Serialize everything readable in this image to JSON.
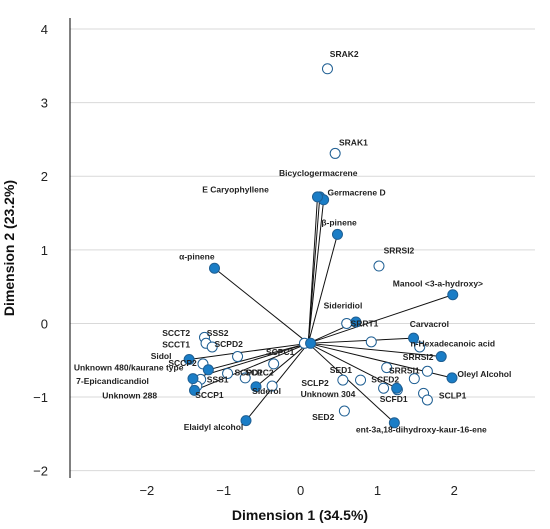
{
  "chart_data": {
    "type": "scatter",
    "title": "",
    "xlabel": "Dimension 1 (34.5%)",
    "ylabel": "Dimension 2 (23.2%)",
    "xlim": [
      -3.0,
      3.05
    ],
    "ylim": [
      -2.1,
      4.15
    ],
    "xticks": [
      "−2",
      "−1",
      "0",
      "1",
      "2"
    ],
    "yticks": [
      "−2",
      "−1",
      "0",
      "1",
      "2",
      "3",
      "4"
    ],
    "grid": "horizontal",
    "colors": {
      "variable": "#1a7dc6",
      "sample": "#ffffff",
      "stroke": "#1f5f93",
      "grid": "#d9d9d9",
      "vector": "#111111"
    },
    "variables": [
      {
        "label": "Bicyclogermacrene",
        "x": 0.25,
        "y": 1.72
      },
      {
        "label": "Germacrene D",
        "x": 0.3,
        "y": 1.68
      },
      {
        "label": "E Caryophyllene",
        "x": 0.22,
        "y": 1.72
      },
      {
        "label": "β-pinene",
        "x": 0.48,
        "y": 1.21
      },
      {
        "label": "α-pinene",
        "x": -1.12,
        "y": 0.75
      },
      {
        "label": "Manool <3-a-hydroxy>",
        "x": 1.98,
        "y": 0.39
      },
      {
        "label": "Carvacrol",
        "x": 0.72,
        "y": 0.02
      },
      {
        "label": "n-Hexadecanoic acid",
        "x": 1.47,
        "y": -0.2
      },
      {
        "label": "Oleyl Alcohol",
        "x": 1.97,
        "y": -0.74
      },
      {
        "label": "Sideridiol",
        "x": 0.13,
        "y": -0.27
      },
      {
        "label": "Unknown 480/kaurane type",
        "x": -1.45,
        "y": -0.49
      },
      {
        "label": "7-Epicandicandiol",
        "x": -1.4,
        "y": -0.75
      },
      {
        "label": "Unknown 288",
        "x": -1.38,
        "y": -0.91
      },
      {
        "label": "Sidol",
        "x": -1.2,
        "y": -0.63
      },
      {
        "label": "Siderol",
        "x": -0.58,
        "y": -0.86
      },
      {
        "label": "Elaidyl alcohol",
        "x": -0.71,
        "y": -1.32
      },
      {
        "label": "ent-3a,18-dihydroxy-kaur-16-ene",
        "x": 1.22,
        "y": -1.35
      },
      {
        "label": "Unknown 304",
        "x": 1.25,
        "y": -0.88
      },
      {
        "label": "",
        "x": 1.83,
        "y": -0.45
      }
    ],
    "samples": [
      {
        "label": "SRAK2",
        "x": 0.35,
        "y": 3.46
      },
      {
        "label": "SRAK1",
        "x": 0.45,
        "y": 2.31
      },
      {
        "label": "SRRSI2",
        "x": 1.02,
        "y": 0.78
      },
      {
        "label": "SRRT1",
        "x": 0.6,
        "y": 0.0
      },
      {
        "label": "SRRSI2",
        "x": 1.55,
        "y": -0.32
      },
      {
        "label": "SRRSI1",
        "x": 1.12,
        "y": -0.6
      },
      {
        "label": "SCCT2",
        "x": -1.25,
        "y": -0.19
      },
      {
        "label": "SCCT1",
        "x": -1.23,
        "y": -0.27
      },
      {
        "label": "SSS2",
        "x": -1.15,
        "y": -0.32
      },
      {
        "label": "SCPD2",
        "x": -0.82,
        "y": -0.45
      },
      {
        "label": "SCCP2",
        "x": -1.27,
        "y": -0.55
      },
      {
        "label": "SCPC1",
        "x": -0.35,
        "y": -0.55
      },
      {
        "label": "SCPD1",
        "x": -0.95,
        "y": -0.68
      },
      {
        "label": "SCPC2",
        "x": -0.72,
        "y": -0.74
      },
      {
        "label": "SSS1",
        "x": -1.3,
        "y": -0.76
      },
      {
        "label": "SCCP1",
        "x": -1.35,
        "y": -0.85
      },
      {
        "label": "SCPC2",
        "x": -0.37,
        "y": -0.85
      },
      {
        "label": "SED1",
        "x": 0.55,
        "y": -0.77
      },
      {
        "label": "SCLP2",
        "x": 0.78,
        "y": -0.77
      },
      {
        "label": "SCFD2",
        "x": 1.08,
        "y": -0.88
      },
      {
        "label": "SCFD1",
        "x": 1.26,
        "y": -0.9
      },
      {
        "label": "SCLP1",
        "x": 1.6,
        "y": -0.95
      },
      {
        "label": "SCLP1",
        "x": 1.65,
        "y": -1.04
      },
      {
        "label": "SCLP1",
        "x": 1.48,
        "y": -0.75
      },
      {
        "label": "SED2",
        "x": 0.57,
        "y": -1.19
      },
      {
        "label": "",
        "x": 0.05,
        "y": -0.27
      },
      {
        "label": "",
        "x": 0.92,
        "y": -0.25
      },
      {
        "label": "",
        "x": 1.65,
        "y": -0.65
      }
    ],
    "labels": [
      {
        "text": "SRAK2",
        "x": 0.38,
        "y": 3.62
      },
      {
        "text": "SRAK1",
        "x": 0.5,
        "y": 2.42
      },
      {
        "text": "Bicyclogermacrene",
        "x": -0.28,
        "y": 2.0
      },
      {
        "text": "E Caryophyllene",
        "x": -1.28,
        "y": 1.78
      },
      {
        "text": "Germacrene D",
        "x": 0.35,
        "y": 1.74
      },
      {
        "text": "β-pinene",
        "x": 0.27,
        "y": 1.33
      },
      {
        "text": "SRRSI2",
        "x": 1.08,
        "y": 0.95
      },
      {
        "text": "α-pinene",
        "x": -1.58,
        "y": 0.87
      },
      {
        "text": "Manool <3-a-hydroxy>",
        "x": 1.2,
        "y": 0.5
      },
      {
        "text": "Sideridiol",
        "x": 0.3,
        "y": 0.2
      },
      {
        "text": "SRRT1",
        "x": 0.65,
        "y": -0.04
      },
      {
        "text": "Carvacrol",
        "x": 1.42,
        "y": -0.05
      },
      {
        "text": "n-Hexadecanoic acid",
        "x": 1.43,
        "y": -0.31
      },
      {
        "text": "SRRSI2",
        "x": 1.33,
        "y": -0.5
      },
      {
        "text": "SRRSI1",
        "x": 1.15,
        "y": -0.68
      },
      {
        "text": "Oleyl Alcohol",
        "x": 2.04,
        "y": -0.73
      },
      {
        "text": "SCLP1",
        "x": 1.8,
        "y": -1.02
      },
      {
        "text": "SCCT2",
        "x": -1.8,
        "y": -0.17
      },
      {
        "text": "SSS2",
        "x": -1.22,
        "y": -0.17
      },
      {
        "text": "SCCT1",
        "x": -1.8,
        "y": -0.33
      },
      {
        "text": "SCPD2",
        "x": -1.12,
        "y": -0.32
      },
      {
        "text": "SCPC1",
        "x": -0.45,
        "y": -0.43
      },
      {
        "text": "Sidol",
        "x": -1.95,
        "y": -0.48
      },
      {
        "text": "SCCP2",
        "x": -1.72,
        "y": -0.58
      },
      {
        "text": "Unknown 480/kaurane type",
        "x": -2.95,
        "y": -0.64
      },
      {
        "text": "SCPD1",
        "x": -0.86,
        "y": -0.71
      },
      {
        "text": "SCPC2",
        "x": -0.72,
        "y": -0.71
      },
      {
        "text": "SSS1",
        "x": -1.22,
        "y": -0.8
      },
      {
        "text": "7-Epicandicandiol",
        "x": -2.92,
        "y": -0.82
      },
      {
        "text": "Siderol",
        "x": -0.63,
        "y": -0.96
      },
      {
        "text": "SCCP1",
        "x": -1.37,
        "y": -1.01
      },
      {
        "text": "Unknown 288",
        "x": -2.58,
        "y": -1.02
      },
      {
        "text": "SED1",
        "x": 0.38,
        "y": -0.67
      },
      {
        "text": "SCFD2",
        "x": 0.92,
        "y": -0.8
      },
      {
        "text": "SCLP2",
        "x": 0.01,
        "y": -0.85
      },
      {
        "text": "Unknown 304",
        "x": 0.0,
        "y": -1.0
      },
      {
        "text": "SCFD1",
        "x": 1.03,
        "y": -1.07
      },
      {
        "text": "SED2",
        "x": 0.15,
        "y": -1.31
      },
      {
        "text": "Elaidyl alcohol",
        "x": -1.52,
        "y": -1.45
      },
      {
        "text": "ent-3a,18-dihydroxy-kaur-16-ene",
        "x": 0.72,
        "y": -1.48
      }
    ]
  }
}
